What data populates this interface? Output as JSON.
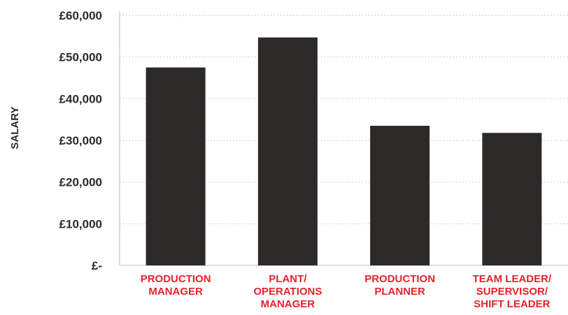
{
  "chart_data": {
    "type": "bar",
    "ylabel": "SALARY",
    "xlabel": "",
    "ylim": [
      0,
      60000
    ],
    "grid": true,
    "y_ticks": [
      {
        "value": 0,
        "label": "£-"
      },
      {
        "value": 10000,
        "label": "£10,000"
      },
      {
        "value": 20000,
        "label": "£20,000"
      },
      {
        "value": 30000,
        "label": "£30,000"
      },
      {
        "value": 40000,
        "label": "£40,000"
      },
      {
        "value": 50000,
        "label": "£50,000"
      },
      {
        "value": 60000,
        "label": "£60,000"
      }
    ],
    "categories": [
      [
        "PRODUCTION",
        "MANAGER"
      ],
      [
        "PLANT/",
        "OPERATIONS",
        "MANAGER"
      ],
      [
        "PRODUCTION",
        "PLANNER"
      ],
      [
        "TEAM LEADER/",
        "SUPERVISOR/",
        "SHIFT LEADER"
      ]
    ],
    "values": [
      47500,
      54700,
      33500,
      31800
    ]
  },
  "colors": {
    "bar": "#2b2a29",
    "category_label": "#e3232b",
    "tick_label": "#2b2b2b",
    "grid": "#c9c9c9",
    "axis": "#d4d4d4"
  }
}
